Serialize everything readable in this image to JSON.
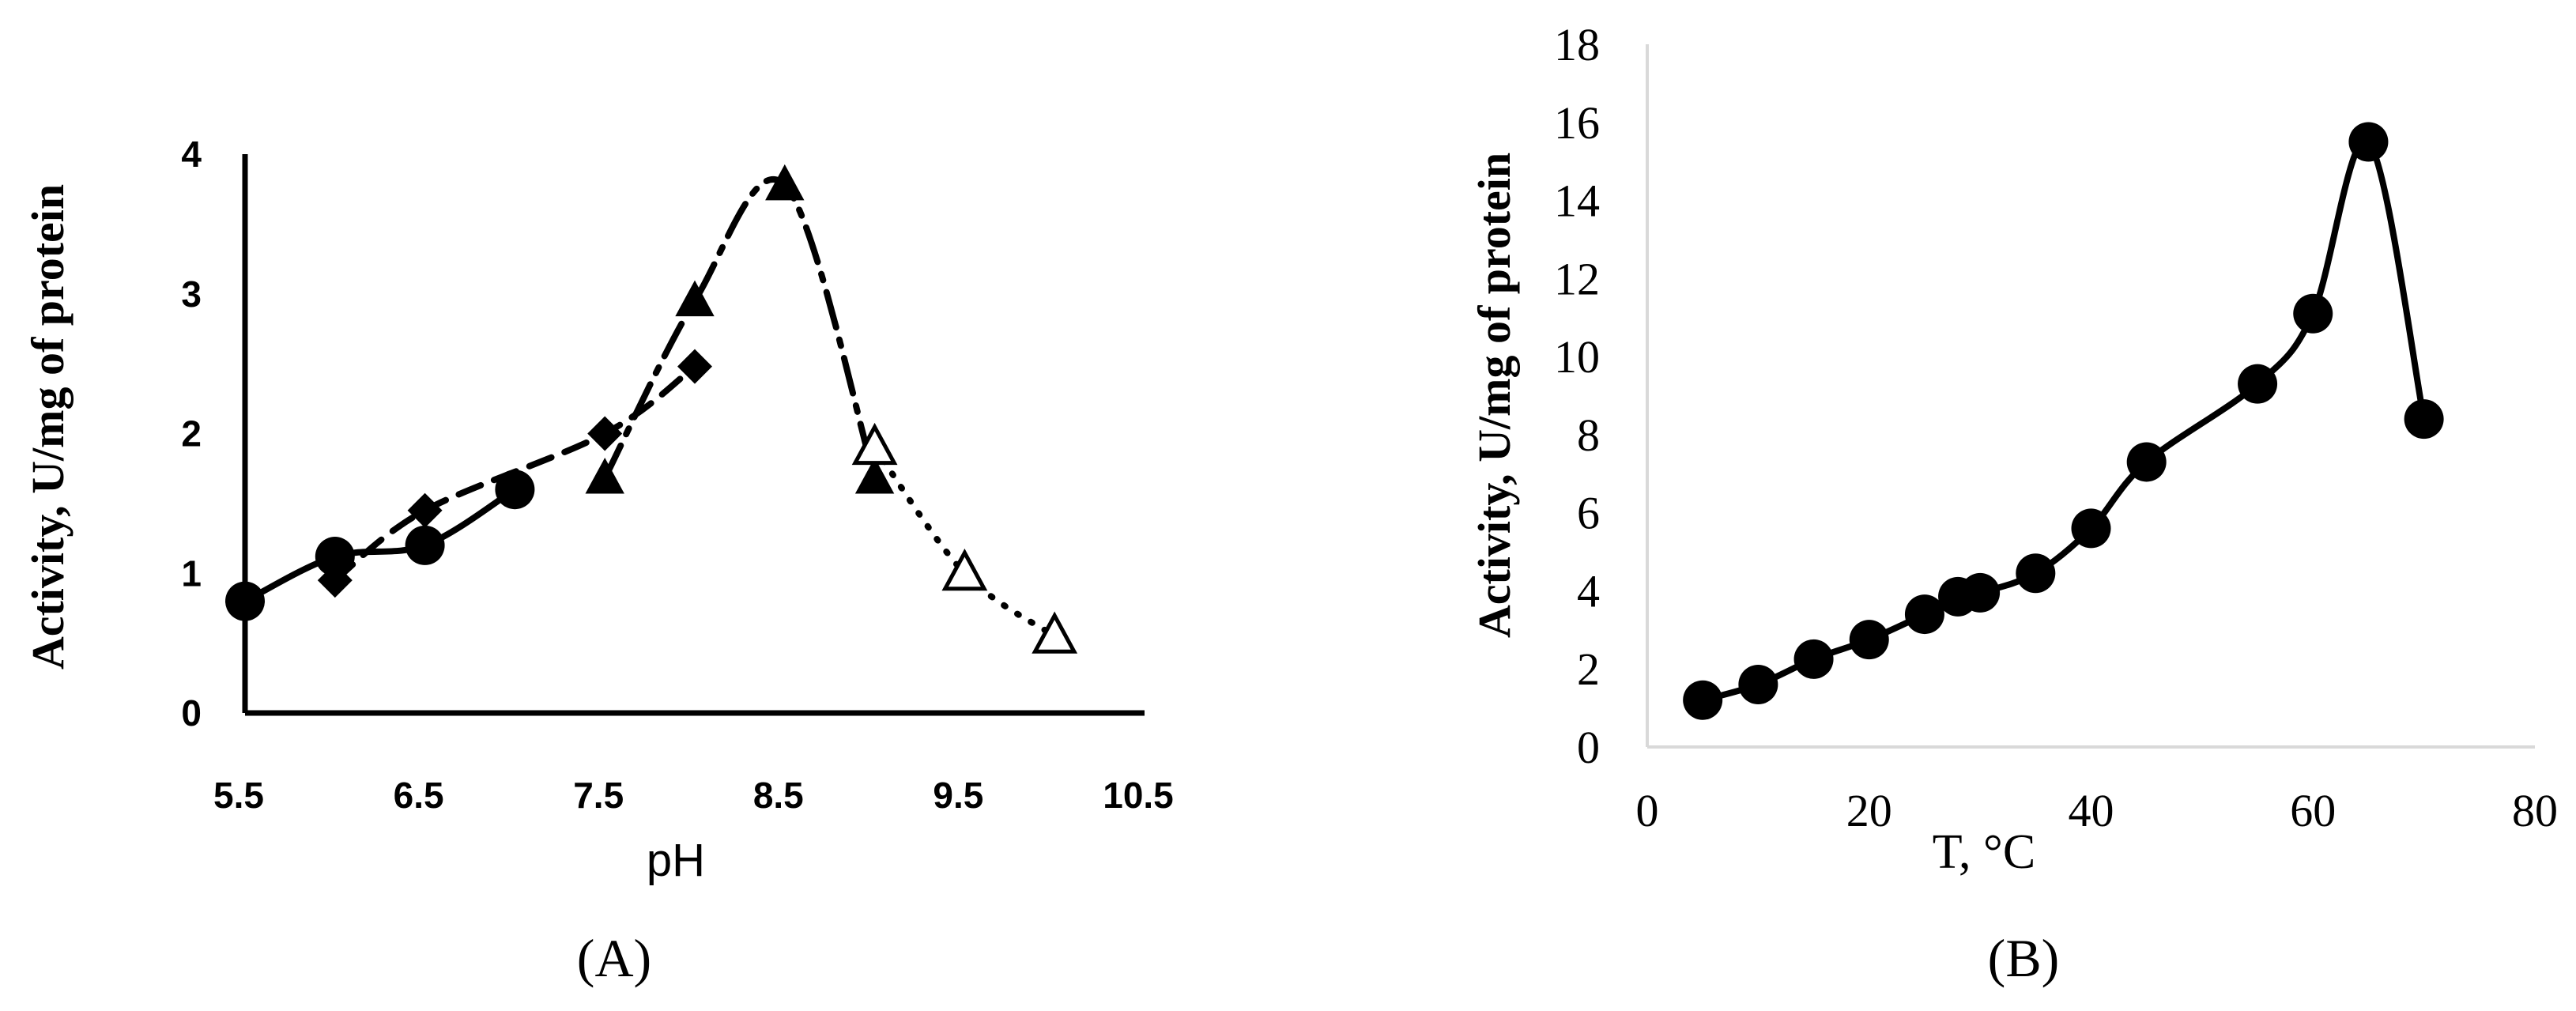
{
  "chart_data": [
    {
      "panel_label": "(A)",
      "type": "line",
      "title": "",
      "xlabel": "pH",
      "ylabel": "Activity, U/mg of protein",
      "xlim": [
        5.5,
        10.5
      ],
      "ylim": [
        0,
        4
      ],
      "x_ticks": [
        "5.5",
        "6.5",
        "7.5",
        "8.5",
        "9.5",
        "10.5"
      ],
      "y_ticks": [
        "0",
        "1",
        "2",
        "3",
        "4"
      ],
      "grid": false,
      "legend": "none",
      "series": [
        {
          "marker": "circle-filled",
          "line": "solid",
          "color": "#000000",
          "x": [
            5.5,
            6.0,
            6.5,
            7.0
          ],
          "y": [
            0.8,
            1.12,
            1.2,
            1.6
          ]
        },
        {
          "marker": "diamond-filled",
          "line": "dashed",
          "color": "#000000",
          "x": [
            6.0,
            6.5,
            7.5,
            8.0
          ],
          "y": [
            0.95,
            1.45,
            2.0,
            2.48
          ]
        },
        {
          "marker": "triangle-filled",
          "line": "dash-dot",
          "color": "#000000",
          "x": [
            7.5,
            8.0,
            8.5,
            9.0
          ],
          "y": [
            1.68,
            2.95,
            3.78,
            1.68
          ]
        },
        {
          "marker": "triangle-open",
          "line": "dotted",
          "color": "#000000",
          "x": [
            9.0,
            9.5,
            10.0
          ],
          "y": [
            1.9,
            1.0,
            0.55
          ]
        }
      ]
    },
    {
      "panel_label": "(B)",
      "type": "line",
      "title": "",
      "xlabel": "T, °C",
      "ylabel": "Activity, U/mg of protein",
      "xlim": [
        0,
        80
      ],
      "ylim": [
        0,
        18
      ],
      "x_ticks": [
        "0",
        "20",
        "40",
        "60",
        "80"
      ],
      "y_ticks": [
        "0",
        "2",
        "4",
        "6",
        "8",
        "10",
        "12",
        "14",
        "16",
        "18"
      ],
      "grid": false,
      "legend": "none",
      "series": [
        {
          "marker": "circle-filled",
          "line": "solid",
          "color": "#000000",
          "x": [
            5,
            10,
            15,
            20,
            25,
            28,
            30,
            35,
            40,
            45,
            55,
            60,
            65,
            70
          ],
          "y": [
            1.2,
            1.6,
            2.25,
            2.75,
            3.4,
            3.85,
            3.95,
            4.45,
            5.6,
            7.3,
            9.3,
            11.1,
            15.5,
            8.4
          ]
        }
      ]
    }
  ]
}
